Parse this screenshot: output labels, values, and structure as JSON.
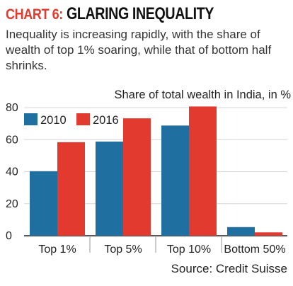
{
  "header": {
    "chart_no": "CHART 6:",
    "title": "GLARING INEQUALITY",
    "subtitle": "Inequality is increasing rapidly, with the share of wealth of top 1% soaring, while that of bottom half shrinks."
  },
  "source": "Source: Credit Suisse",
  "colors": {
    "series_2010": "#1f6fa0",
    "series_2016": "#e23a2e",
    "accent": "#e23a2e"
  },
  "chart_data": {
    "type": "bar",
    "title": "",
    "ylabel": "Share of total wealth in India, in %",
    "xlabel": "",
    "categories": [
      "Top 1%",
      "Top 5%",
      "Top 10%",
      "Bottom 50%"
    ],
    "series": [
      {
        "name": "2010",
        "values": [
          40.3,
          58.8,
          68.8,
          5.4
        ]
      },
      {
        "name": "2016",
        "values": [
          58.4,
          73.3,
          80.7,
          2.1
        ]
      }
    ],
    "ylim": [
      0,
      80
    ],
    "yticks": [
      0,
      20,
      40,
      60,
      80
    ],
    "grid": true,
    "legend": "top-left"
  }
}
